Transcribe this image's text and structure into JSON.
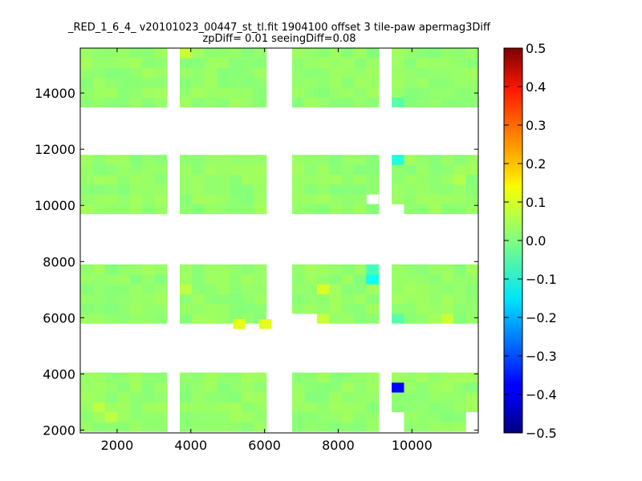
{
  "chart_data": {
    "type": "heatmap",
    "title": "_RED_1_6_4_ v20101023_00447_st_tl.fit 1904100 offset 3 tile-paw apermag3Diff",
    "subtitle": "zpDiff= 0.01 seeingDiff=0.08",
    "xlabel": "",
    "ylabel": "",
    "xlim": [
      1000,
      11800
    ],
    "ylim": [
      1900,
      15600
    ],
    "x_ticks": [
      2000,
      4000,
      6000,
      8000,
      10000
    ],
    "y_ticks": [
      2000,
      4000,
      6000,
      8000,
      10000,
      12000,
      14000
    ],
    "colormap": "jet",
    "clim": [
      -0.5,
      0.5
    ],
    "colorbar_ticks": [
      "0.5",
      "0.4",
      "0.3",
      "0.2",
      "0.1",
      "0.0",
      "−0.1",
      "−0.2",
      "−0.3",
      "−0.4",
      "−0.5"
    ],
    "grid": false,
    "tile_columns": [
      [
        1000,
        3350
      ],
      [
        3700,
        6050
      ],
      [
        6750,
        9100
      ],
      [
        9450,
        11800
      ]
    ],
    "tile_rows": [
      [
        1950,
        4050
      ],
      [
        5800,
        7900
      ],
      [
        9700,
        11800
      ],
      [
        13500,
        15600
      ]
    ],
    "cell_size": [
      335,
      350
    ],
    "base_value": 0.02,
    "value_noise": 0.015,
    "highlight_cells": [
      {
        "x": 9700,
        "y": 3450,
        "value": -0.37
      },
      {
        "x": 9700,
        "y": 11650,
        "value": -0.09
      },
      {
        "x": 8950,
        "y": 7300,
        "value": -0.11
      },
      {
        "x": 8950,
        "y": 7650,
        "value": -0.06
      },
      {
        "x": 9600,
        "y": 13700,
        "value": -0.04
      },
      {
        "x": 9600,
        "y": 5950,
        "value": -0.04
      },
      {
        "x": 5150,
        "y": 5600,
        "value": 0.1
      },
      {
        "x": 5850,
        "y": 5600,
        "value": 0.1
      },
      {
        "x": 7550,
        "y": 6850,
        "value": 0.09
      },
      {
        "x": 7700,
        "y": 5950,
        "value": 0.07
      },
      {
        "x": 11000,
        "y": 5950,
        "value": 0.07
      },
      {
        "x": 4000,
        "y": 7000,
        "value": 0.06
      },
      {
        "x": 3900,
        "y": 15400,
        "value": 0.07
      },
      {
        "x": 1400,
        "y": 2700,
        "value": 0.06
      },
      {
        "x": 1700,
        "y": 2400,
        "value": 0.06
      },
      {
        "x": 11300,
        "y": 11000,
        "value": 0.05
      }
    ],
    "blank_cells": [
      {
        "x": 8950,
        "y": 10150
      },
      {
        "x": 9700,
        "y": 9950
      },
      {
        "x": 9600,
        "y": 2100
      },
      {
        "x": 9600,
        "y": 2450
      },
      {
        "x": 9250,
        "y": 2100
      },
      {
        "x": 9250,
        "y": 2450
      },
      {
        "x": 9250,
        "y": 2800
      },
      {
        "x": 9250,
        "y": 3150
      },
      {
        "x": 11600,
        "y": 2450
      },
      {
        "x": 11600,
        "y": 2100
      },
      {
        "x": 6050,
        "y": 5950
      },
      {
        "x": 6750,
        "y": 5950
      },
      {
        "x": 7100,
        "y": 5950
      }
    ]
  }
}
